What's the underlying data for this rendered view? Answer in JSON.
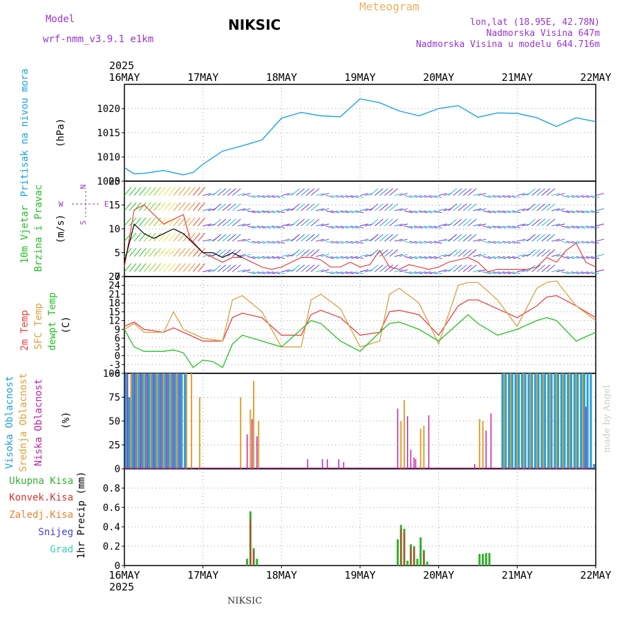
{
  "header": {
    "model_label": "Model",
    "model_name": "wrf-nmm_v3.9.1  e1km",
    "station": "NIKSIC",
    "product": "Meteogram",
    "coords": "lon,lat (18.95E, 42.78N)",
    "altitude": "Nadmorska Visina 647m",
    "model_altitude": "Nadmorska Visina u modelu 644.716m",
    "footer_station": "NIKSIC",
    "credit": "made by Angel"
  },
  "colors": {
    "pressure": "#1aa0e8",
    "temp2m": "#e84040",
    "sfc_temp": "#d8a040",
    "dewpoint": "#20c020",
    "high_cloud": "#20a0e0",
    "mid_cloud": "#e0a030",
    "low_cloud": "#c020a0",
    "total_precip": "#30b030",
    "conv_precip": "#e03030",
    "frozen_precip": "#f08030",
    "snow": "#4040e0",
    "hail": "#30d0c0",
    "header_purple": "#9933cc",
    "header_orange": "#e8b060"
  },
  "time_axis": {
    "year": "2025",
    "days": [
      "16MAY",
      "17MAY",
      "18MAY",
      "19MAY",
      "20MAY",
      "21MAY",
      "22MAY"
    ]
  },
  "chart_data": [
    {
      "type": "line",
      "name": "pressure",
      "ylabel": "Pritisak na nivou mora",
      "unit": "(hPa)",
      "ylim": [
        1005,
        1025
      ],
      "yticks": [
        1005,
        1010,
        1015,
        1020
      ],
      "grid": true,
      "series": [
        {
          "name": "Pritisak na nivou mora",
          "x": [
            0,
            3,
            6,
            12,
            18,
            21,
            24,
            30,
            36,
            42,
            48,
            54,
            60,
            66,
            72,
            78,
            84,
            90,
            96,
            102,
            108,
            114,
            120,
            126,
            132,
            138,
            144
          ],
          "values": [
            1007.8,
            1006.5,
            1006.6,
            1007.2,
            1006.3,
            1006.8,
            1008.5,
            1011.2,
            1012.3,
            1013.5,
            1018.0,
            1019.2,
            1018.5,
            1018.3,
            1022.0,
            1021.2,
            1019.5,
            1018.5,
            1020.0,
            1020.6,
            1018.2,
            1019.1,
            1019.0,
            1018.1,
            1016.3,
            1018.1,
            1017.3
          ]
        }
      ]
    },
    {
      "type": "line",
      "name": "wind",
      "ylabel": "10m Vjetar Brzina i Pravac",
      "unit": "(m/s)",
      "ylim": [
        0,
        20
      ],
      "yticks": [
        0,
        5,
        10,
        15,
        20
      ],
      "compass": {
        "north": "N",
        "south": "S",
        "east": "E",
        "west": "W"
      },
      "grid": true,
      "series": [
        {
          "name": "wind_speed",
          "x": [
            0,
            3,
            6,
            9,
            12,
            15,
            18,
            20,
            24,
            27,
            30,
            33,
            36,
            39,
            42,
            45,
            48,
            51,
            54,
            57,
            60,
            63,
            66,
            69,
            72,
            75,
            78,
            81,
            84,
            87,
            90,
            93,
            96,
            99,
            102,
            105,
            108,
            111,
            114,
            117,
            120,
            123,
            126,
            129,
            132,
            135,
            138,
            141,
            144
          ],
          "values": [
            2,
            14,
            15,
            13,
            11,
            12,
            13,
            8,
            5,
            4,
            3,
            4,
            4,
            3,
            2,
            1.5,
            2,
            3,
            4,
            4,
            3.5,
            2,
            2,
            3,
            2,
            2.5,
            5.5,
            2,
            1.5,
            2.5,
            2,
            1.5,
            2,
            3,
            3.5,
            4,
            3,
            1,
            1.5,
            1.5,
            1.5,
            1.5,
            2,
            4,
            3,
            5.5,
            7,
            3,
            2
          ]
        },
        {
          "name": "gust",
          "x": [
            0,
            3,
            6,
            9,
            12,
            15,
            18,
            21,
            24,
            27,
            30,
            33,
            36
          ],
          "values": [
            3,
            11,
            9,
            8,
            9,
            10,
            9,
            7,
            5,
            5,
            4,
            5,
            4
          ]
        }
      ]
    },
    {
      "type": "line",
      "name": "temperature",
      "ylabels": [
        "2m Temp",
        "SFC Temp",
        "dewpt Temp"
      ],
      "unit": "(C)",
      "ylim": [
        -6,
        27
      ],
      "yticks": [
        -6,
        -3,
        0,
        3,
        6,
        9,
        12,
        15,
        18,
        21,
        24,
        27
      ],
      "grid": true,
      "series": [
        {
          "name": "2m Temp",
          "x": [
            0,
            3,
            6,
            12,
            15,
            18,
            24,
            30,
            33,
            36,
            42,
            48,
            54,
            57,
            60,
            66,
            72,
            78,
            81,
            84,
            90,
            96,
            102,
            105,
            108,
            114,
            120,
            126,
            129,
            132,
            138,
            144
          ],
          "values": [
            10,
            11.5,
            9,
            8,
            9.5,
            8,
            5,
            5,
            13,
            14.5,
            13,
            7,
            7,
            14,
            15.5,
            13,
            7,
            8,
            15,
            15.5,
            14,
            7,
            17,
            19,
            19,
            16,
            13,
            17,
            20,
            20.5,
            17,
            13
          ]
        },
        {
          "name": "SFC Temp",
          "x": [
            0,
            3,
            6,
            12,
            15,
            18,
            24,
            30,
            33,
            36,
            42,
            48,
            54,
            57,
            60,
            66,
            72,
            78,
            81,
            84,
            90,
            96,
            102,
            105,
            108,
            114,
            120,
            126,
            129,
            132,
            138,
            144
          ],
          "values": [
            9,
            11,
            8,
            8,
            15,
            9,
            6,
            5,
            19,
            20.5,
            15,
            3,
            3,
            19,
            21,
            16,
            3,
            5,
            21,
            23,
            18,
            4,
            24,
            25,
            25,
            19,
            10,
            23,
            25,
            25.5,
            17,
            12
          ]
        },
        {
          "name": "dewpt Temp",
          "x": [
            0,
            3,
            6,
            12,
            15,
            18,
            21,
            24,
            27,
            30,
            33,
            36,
            42,
            48,
            54,
            57,
            60,
            66,
            72,
            78,
            81,
            84,
            90,
            96,
            102,
            105,
            108,
            114,
            120,
            126,
            129,
            132,
            138,
            144
          ],
          "values": [
            9,
            3,
            1.5,
            1.5,
            2,
            1,
            -4,
            -1.5,
            -2,
            -4,
            4,
            7,
            5,
            3,
            9,
            12,
            11,
            5,
            1.5,
            8,
            11,
            11.5,
            9,
            5,
            11,
            14,
            11,
            7,
            9,
            12,
            13,
            12,
            5,
            8
          ]
        }
      ]
    },
    {
      "type": "bar",
      "name": "cloud_cover",
      "ylabels": [
        "Visoka Oblacnost",
        "Srednja Oblacnost",
        "Niska Oblacnost"
      ],
      "unit": "(%)",
      "ylim": [
        0,
        100
      ],
      "yticks": [
        0,
        25,
        50,
        75,
        100
      ],
      "grid": true,
      "series": [
        {
          "name": "Visoka Oblacnost",
          "x": [
            0.5,
            1.5,
            2.5,
            3.5,
            4.5,
            5.5,
            6.5,
            7.5,
            8.5,
            9.5,
            10.5,
            11.5,
            12.5,
            13.5,
            14.5,
            15.5,
            16.5,
            17.5,
            18.5,
            115.5,
            116.5,
            117.5,
            118.5,
            119.5,
            120.5,
            121.5,
            122.5,
            123.5,
            124.5,
            125.5,
            126.5,
            127.5,
            128.5,
            129.5,
            130.5,
            131.5,
            132.5,
            133.5,
            134.5,
            135.5,
            136.5,
            137.5,
            138.5,
            139.5,
            140.5,
            141.5,
            142.5,
            143.5
          ],
          "values": [
            100,
            75,
            100,
            100,
            100,
            100,
            100,
            100,
            100,
            100,
            100,
            100,
            100,
            100,
            100,
            100,
            100,
            100,
            100,
            100,
            100,
            100,
            100,
            100,
            100,
            100,
            100,
            100,
            100,
            100,
            100,
            100,
            100,
            100,
            100,
            100,
            100,
            100,
            100,
            100,
            100,
            100,
            100,
            100,
            100,
            100,
            100,
            5
          ]
        },
        {
          "name": "Srednja Oblacnost",
          "x": [
            2,
            4,
            6,
            8,
            10,
            12,
            14,
            16,
            19,
            20.5,
            23,
            35.5,
            38.5,
            39.5,
            41,
            84.5,
            85.5,
            90.5,
            91.5,
            108.5,
            109.5,
            116,
            118,
            120,
            122,
            124,
            126,
            128,
            130,
            132,
            134,
            136,
            138,
            140
          ],
          "values": [
            100,
            100,
            100,
            100,
            100,
            100,
            100,
            100,
            100,
            100,
            75,
            75,
            62,
            92,
            50,
            50,
            72,
            42,
            45,
            52,
            50,
            100,
            100,
            100,
            100,
            100,
            100,
            100,
            100,
            100,
            100,
            100,
            100,
            100
          ]
        },
        {
          "name": "Niska Oblacnost",
          "x": [
            1,
            3,
            5,
            7,
            9,
            11,
            13,
            15,
            17,
            37.5,
            39,
            40.5,
            56,
            60.5,
            62,
            65.5,
            67,
            83.5,
            86.5,
            87.5,
            88.5,
            89,
            93,
            107,
            110.5,
            112,
            141
          ],
          "values": [
            100,
            100,
            100,
            100,
            100,
            100,
            100,
            100,
            100,
            36,
            52,
            34,
            10,
            10,
            10,
            10,
            7,
            63,
            55,
            20,
            12,
            10,
            56,
            5,
            40,
            58,
            65
          ]
        }
      ]
    },
    {
      "type": "bar",
      "name": "precipitation",
      "ylabel": "1hr Precip",
      "unit": "(mm)",
      "legend": [
        "Ukupna Kisa",
        "Konvek.Kisa",
        "Zaledj.Kisa",
        "Snijeg",
        "Grad"
      ],
      "ylim": [
        0,
        1.0
      ],
      "yticks": [
        0,
        0.2,
        0.4,
        0.6,
        0.8
      ],
      "grid": true,
      "series": [
        {
          "name": "Ukupna Kisa",
          "x": [
            37.5,
            38.5,
            39.5,
            40.5,
            83.5,
            84.5,
            85.5,
            86.5,
            87.5,
            88.5,
            89.5,
            90.5,
            91.5,
            92.5,
            108.5,
            109.5,
            110.5,
            111.5
          ],
          "values": [
            0.07,
            0.56,
            0.18,
            0.07,
            0.27,
            0.42,
            0.38,
            0.05,
            0.22,
            0.2,
            0.07,
            0.29,
            0.16,
            0.04,
            0.12,
            0.12,
            0.13,
            0.13
          ]
        },
        {
          "name": "Konvek.Kisa",
          "x": [
            38.5,
            39.5,
            84.5,
            85.5,
            87.5,
            88.5,
            91.5
          ],
          "values": [
            0.48,
            0.15,
            0.38,
            0.34,
            0.2,
            0.18,
            0.14
          ]
        }
      ]
    }
  ]
}
